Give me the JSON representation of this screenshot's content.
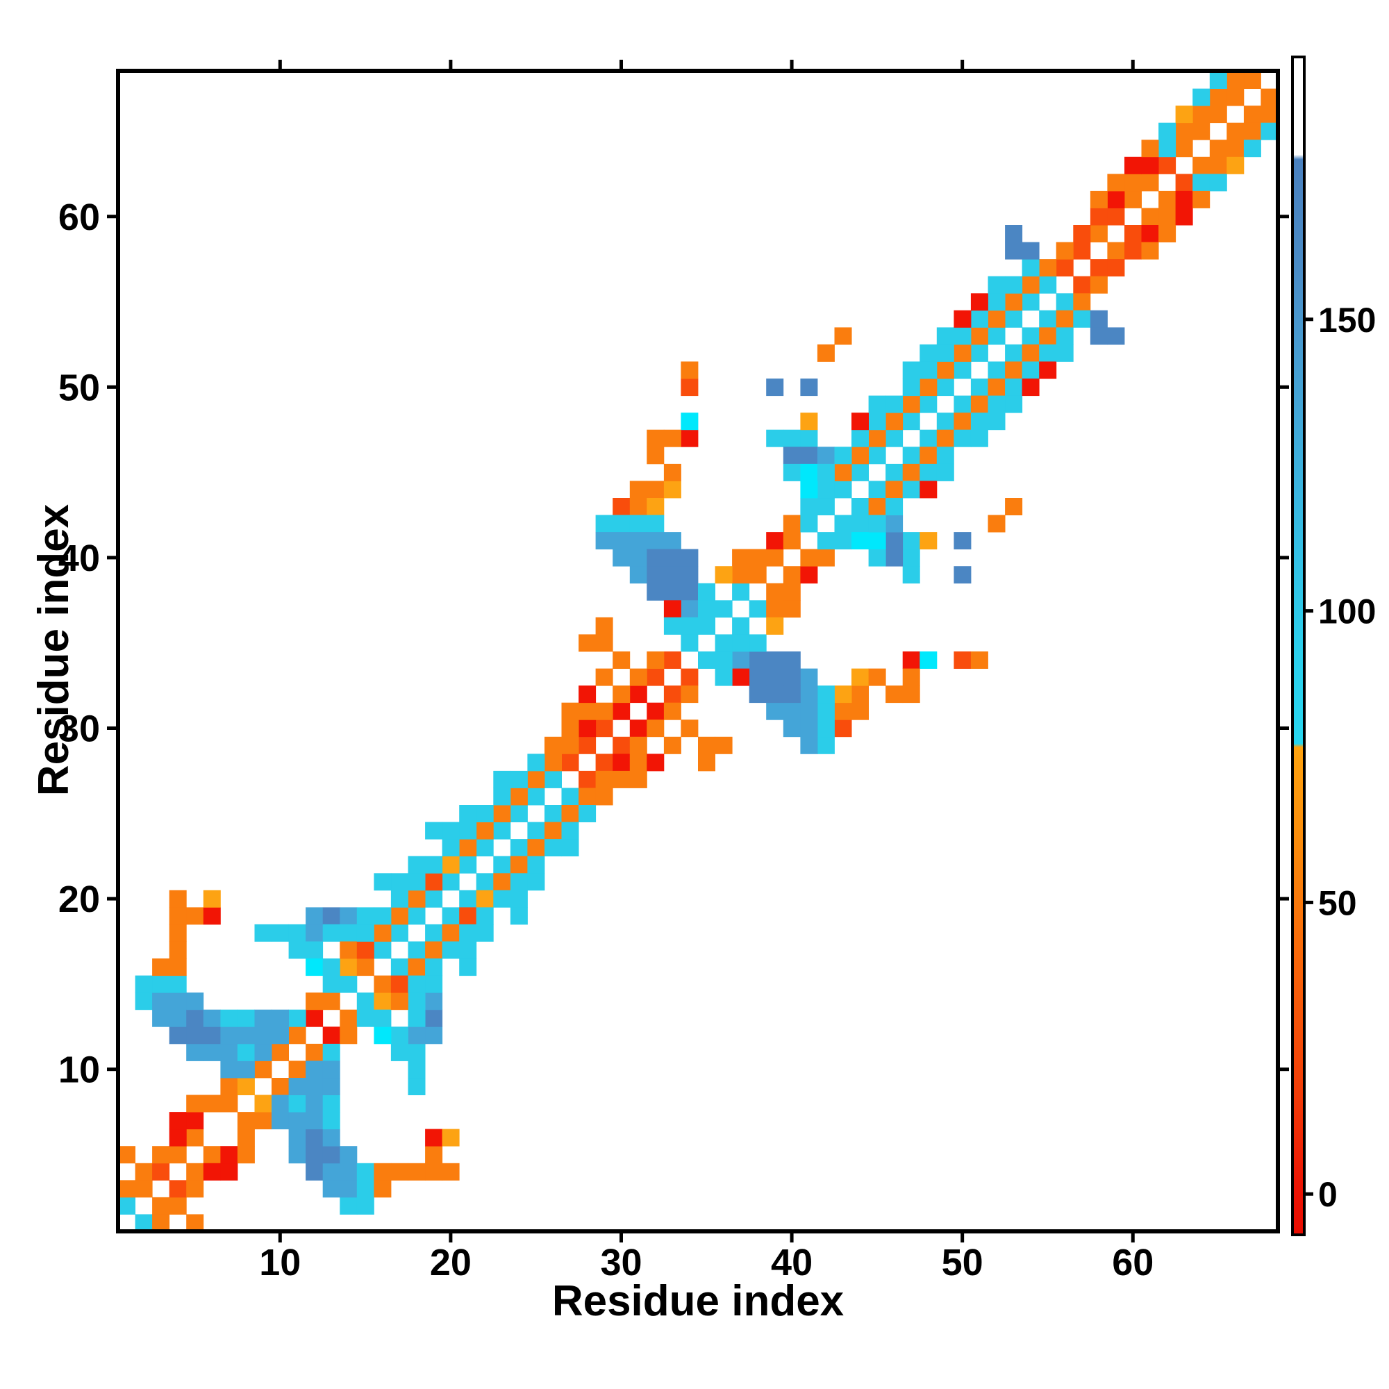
{
  "figure": {
    "x_axis_title": "Residue index",
    "y_axis_title": "Residue index"
  },
  "chart_data": {
    "type": "heatmap",
    "title": "",
    "xlabel": "Residue index",
    "ylabel": "Residue index",
    "n_residues": 68,
    "x_ticks": [
      10,
      20,
      30,
      40,
      50,
      60
    ],
    "y_ticks": [
      10,
      20,
      30,
      40,
      50,
      60
    ],
    "grid": false,
    "symmetric_matrix": true,
    "background_value_color": "#ffffff",
    "palette": {
      "R": "#f21505",
      "V": "#f94d0c",
      "O": "#fa7d0e",
      "A": "#fda313",
      "C": "#2bcde9",
      "X": "#00e8fc",
      "B": "#44a5d8",
      "S": "#4b86c3"
    },
    "class_value_ranges": {
      "R": "0-15",
      "V": "20-40",
      "O": "45-65",
      "A": "65-75",
      "C": "80-120",
      "X": "85 (bright)",
      "B": "125-145",
      "S": "150-175",
      "white": ">178 / no contact"
    },
    "colorbar": {
      "ticks": [
        0,
        50,
        100,
        150
      ],
      "value_range": [
        -7,
        195
      ],
      "segments_top_to_bottom": [
        [
          "0.000",
          "#ffffff"
        ],
        [
          "0.083",
          "#ffffff"
        ],
        [
          "0.087",
          "#4a81bf"
        ],
        [
          "0.180",
          "#4a8cc6"
        ],
        [
          "0.224",
          "#4997cd"
        ],
        [
          "0.300",
          "#43a6d7"
        ],
        [
          "0.400",
          "#36bce3"
        ],
        [
          "0.500",
          "#2ccfec"
        ],
        [
          "0.583",
          "#27d6ef"
        ],
        [
          "0.586",
          "#ffa30f"
        ],
        [
          "0.660",
          "#fb8e0c"
        ],
        [
          "0.760",
          "#f9690a"
        ],
        [
          "0.880",
          "#f23c08"
        ],
        [
          "0.960",
          "#ec1404"
        ],
        [
          "1.000",
          "#e80c00"
        ]
      ]
    },
    "cells": [
      [
        1,
        2,
        "C"
      ],
      [
        1,
        3,
        "O"
      ],
      [
        2,
        3,
        "O"
      ],
      [
        2,
        4,
        "O"
      ],
      [
        3,
        4,
        "V"
      ],
      [
        3,
        5,
        "O"
      ],
      [
        1,
        5,
        "O"
      ],
      [
        4,
        5,
        "O"
      ],
      [
        5,
        6,
        "O"
      ],
      [
        4,
        6,
        "R"
      ],
      [
        4,
        7,
        "R"
      ],
      [
        5,
        7,
        "R"
      ],
      [
        5,
        8,
        "O"
      ],
      [
        6,
        8,
        "O"
      ],
      [
        7,
        8,
        "O"
      ],
      [
        7,
        9,
        "O"
      ],
      [
        8,
        9,
        "A"
      ],
      [
        9,
        10,
        "O"
      ],
      [
        8,
        10,
        "O"
      ],
      [
        10,
        11,
        "O"
      ],
      [
        11,
        12,
        "O"
      ],
      [
        10,
        12,
        "B"
      ],
      [
        12,
        13,
        "R"
      ],
      [
        11,
        13,
        "C"
      ],
      [
        13,
        14,
        "O"
      ],
      [
        12,
        14,
        "O"
      ],
      [
        13,
        15,
        "C"
      ],
      [
        14,
        15,
        "C"
      ],
      [
        14,
        16,
        "A"
      ],
      [
        15,
        16,
        "O"
      ],
      [
        2,
        14,
        "C"
      ],
      [
        2,
        15,
        "C"
      ],
      [
        3,
        13,
        "B"
      ],
      [
        3,
        14,
        "B"
      ],
      [
        3,
        15,
        "C"
      ],
      [
        4,
        12,
        "S"
      ],
      [
        4,
        13,
        "B"
      ],
      [
        4,
        14,
        "B"
      ],
      [
        4,
        15,
        "C"
      ],
      [
        5,
        11,
        "B"
      ],
      [
        5,
        12,
        "S"
      ],
      [
        5,
        13,
        "S"
      ],
      [
        5,
        14,
        "B"
      ],
      [
        6,
        11,
        "B"
      ],
      [
        6,
        12,
        "S"
      ],
      [
        6,
        13,
        "B"
      ],
      [
        7,
        10,
        "B"
      ],
      [
        7,
        11,
        "B"
      ],
      [
        7,
        12,
        "B"
      ],
      [
        7,
        13,
        "C"
      ],
      [
        8,
        10,
        "B"
      ],
      [
        8,
        11,
        "C"
      ],
      [
        8,
        12,
        "B"
      ],
      [
        8,
        13,
        "C"
      ],
      [
        9,
        11,
        "B"
      ],
      [
        9,
        12,
        "B"
      ],
      [
        9,
        13,
        "B"
      ],
      [
        10,
        13,
        "B"
      ],
      [
        3,
        16,
        "O"
      ],
      [
        4,
        16,
        "O"
      ],
      [
        4,
        17,
        "O"
      ],
      [
        4,
        18,
        "O"
      ],
      [
        4,
        19,
        "O"
      ],
      [
        5,
        19,
        "O"
      ],
      [
        6,
        19,
        "R"
      ],
      [
        4,
        20,
        "O"
      ],
      [
        6,
        20,
        "A"
      ],
      [
        9,
        18,
        "C"
      ],
      [
        10,
        18,
        "C"
      ],
      [
        11,
        18,
        "C"
      ],
      [
        12,
        18,
        "B"
      ],
      [
        11,
        17,
        "C"
      ],
      [
        12,
        17,
        "C"
      ],
      [
        12,
        16,
        "X"
      ],
      [
        12,
        19,
        "B"
      ],
      [
        13,
        19,
        "S"
      ],
      [
        14,
        19,
        "B"
      ],
      [
        13,
        18,
        "C"
      ],
      [
        14,
        18,
        "C"
      ],
      [
        13,
        16,
        "C"
      ],
      [
        14,
        17,
        "O"
      ],
      [
        16,
        17,
        "C"
      ],
      [
        17,
        18,
        "C"
      ],
      [
        18,
        19,
        "C"
      ],
      [
        19,
        20,
        "C"
      ],
      [
        20,
        21,
        "C"
      ],
      [
        21,
        22,
        "C"
      ],
      [
        22,
        23,
        "C"
      ],
      [
        23,
        24,
        "C"
      ],
      [
        24,
        25,
        "C"
      ],
      [
        25,
        26,
        "C"
      ],
      [
        26,
        27,
        "C"
      ],
      [
        27,
        28,
        "V"
      ],
      [
        28,
        29,
        "V"
      ],
      [
        29,
        30,
        "V"
      ],
      [
        30,
        31,
        "R"
      ],
      [
        31,
        32,
        "R"
      ],
      [
        32,
        33,
        "V"
      ],
      [
        33,
        34,
        "V"
      ],
      [
        15,
        17,
        "V"
      ],
      [
        16,
        18,
        "O"
      ],
      [
        17,
        19,
        "O"
      ],
      [
        18,
        20,
        "O"
      ],
      [
        19,
        21,
        "V"
      ],
      [
        20,
        22,
        "A"
      ],
      [
        21,
        23,
        "O"
      ],
      [
        22,
        24,
        "O"
      ],
      [
        23,
        25,
        "O"
      ],
      [
        24,
        26,
        "O"
      ],
      [
        25,
        27,
        "O"
      ],
      [
        26,
        28,
        "O"
      ],
      [
        27,
        29,
        "O"
      ],
      [
        28,
        30,
        "R"
      ],
      [
        29,
        31,
        "O"
      ],
      [
        30,
        32,
        "O"
      ],
      [
        31,
        33,
        "O"
      ],
      [
        32,
        34,
        "O"
      ],
      [
        15,
        18,
        "C"
      ],
      [
        16,
        19,
        "C"
      ],
      [
        17,
        20,
        "C"
      ],
      [
        18,
        21,
        "C"
      ],
      [
        19,
        22,
        "C"
      ],
      [
        20,
        23,
        "C"
      ],
      [
        21,
        24,
        "C"
      ],
      [
        22,
        25,
        "C"
      ],
      [
        23,
        26,
        "C"
      ],
      [
        24,
        27,
        "C"
      ],
      [
        25,
        28,
        "C"
      ],
      [
        26,
        29,
        "O"
      ],
      [
        27,
        30,
        "O"
      ],
      [
        28,
        31,
        "O"
      ],
      [
        28,
        32,
        "R"
      ],
      [
        29,
        33,
        "O"
      ],
      [
        30,
        34,
        "O"
      ],
      [
        27,
        31,
        "O"
      ],
      [
        15,
        19,
        "C"
      ],
      [
        17,
        21,
        "C"
      ],
      [
        18,
        22,
        "C"
      ],
      [
        20,
        24,
        "C"
      ],
      [
        21,
        25,
        "C"
      ],
      [
        23,
        27,
        "C"
      ],
      [
        16,
        21,
        "C"
      ],
      [
        19,
        24,
        "C"
      ],
      [
        31,
        44,
        "O"
      ],
      [
        32,
        44,
        "O"
      ],
      [
        33,
        44,
        "A"
      ],
      [
        33,
        45,
        "O"
      ],
      [
        30,
        43,
        "V"
      ],
      [
        31,
        43,
        "O"
      ],
      [
        32,
        43,
        "A"
      ],
      [
        29,
        42,
        "C"
      ],
      [
        30,
        42,
        "C"
      ],
      [
        31,
        42,
        "C"
      ],
      [
        32,
        42,
        "C"
      ],
      [
        29,
        41,
        "B"
      ],
      [
        30,
        41,
        "B"
      ],
      [
        31,
        41,
        "B"
      ],
      [
        32,
        41,
        "B"
      ],
      [
        33,
        41,
        "B"
      ],
      [
        30,
        40,
        "B"
      ],
      [
        31,
        40,
        "B"
      ],
      [
        32,
        40,
        "S"
      ],
      [
        33,
        40,
        "S"
      ],
      [
        34,
        40,
        "S"
      ],
      [
        31,
        39,
        "B"
      ],
      [
        32,
        39,
        "S"
      ],
      [
        33,
        39,
        "S"
      ],
      [
        34,
        39,
        "S"
      ],
      [
        32,
        38,
        "S"
      ],
      [
        33,
        38,
        "S"
      ],
      [
        34,
        38,
        "S"
      ],
      [
        35,
        38,
        "C"
      ],
      [
        34,
        37,
        "B"
      ],
      [
        35,
        37,
        "C"
      ],
      [
        33,
        37,
        "R"
      ],
      [
        33,
        36,
        "C"
      ],
      [
        34,
        36,
        "C"
      ],
      [
        35,
        36,
        "C"
      ],
      [
        34,
        35,
        "C"
      ],
      [
        29,
        36,
        "O"
      ],
      [
        29,
        35,
        "O"
      ],
      [
        28,
        35,
        "O"
      ],
      [
        36,
        37,
        "C"
      ],
      [
        37,
        38,
        "C"
      ],
      [
        38,
        39,
        "O"
      ],
      [
        39,
        40,
        "O"
      ],
      [
        37,
        39,
        "O"
      ],
      [
        37,
        40,
        "O"
      ],
      [
        38,
        40,
        "O"
      ],
      [
        39,
        41,
        "R"
      ],
      [
        40,
        41,
        "O"
      ],
      [
        36,
        39,
        "A"
      ],
      [
        40,
        42,
        "O"
      ],
      [
        41,
        42,
        "C"
      ],
      [
        41,
        43,
        "C"
      ],
      [
        42,
        43,
        "C"
      ],
      [
        34,
        47,
        "R"
      ],
      [
        34,
        48,
        "X"
      ],
      [
        32,
        47,
        "O"
      ],
      [
        33,
        47,
        "O"
      ],
      [
        32,
        46,
        "O"
      ],
      [
        39,
        47,
        "C"
      ],
      [
        40,
        47,
        "C"
      ],
      [
        41,
        47,
        "C"
      ],
      [
        40,
        46,
        "S"
      ],
      [
        41,
        46,
        "S"
      ],
      [
        42,
        46,
        "B"
      ],
      [
        41,
        48,
        "A"
      ],
      [
        39,
        50,
        "S"
      ],
      [
        41,
        50,
        "S"
      ],
      [
        34,
        50,
        "V"
      ],
      [
        34,
        51,
        "O"
      ],
      [
        43,
        53,
        "O"
      ],
      [
        42,
        52,
        "O"
      ],
      [
        43,
        44,
        "C"
      ],
      [
        44,
        45,
        "C"
      ],
      [
        45,
        46,
        "C"
      ],
      [
        46,
        47,
        "C"
      ],
      [
        47,
        48,
        "C"
      ],
      [
        48,
        49,
        "C"
      ],
      [
        49,
        50,
        "C"
      ],
      [
        50,
        51,
        "C"
      ],
      [
        51,
        52,
        "C"
      ],
      [
        52,
        53,
        "C"
      ],
      [
        53,
        54,
        "C"
      ],
      [
        54,
        55,
        "C"
      ],
      [
        55,
        56,
        "C"
      ],
      [
        56,
        57,
        "V"
      ],
      [
        57,
        58,
        "V"
      ],
      [
        43,
        45,
        "O"
      ],
      [
        44,
        46,
        "O"
      ],
      [
        45,
        47,
        "O"
      ],
      [
        46,
        48,
        "O"
      ],
      [
        47,
        49,
        "O"
      ],
      [
        48,
        50,
        "O"
      ],
      [
        49,
        51,
        "O"
      ],
      [
        50,
        52,
        "O"
      ],
      [
        51,
        53,
        "O"
      ],
      [
        52,
        54,
        "O"
      ],
      [
        53,
        55,
        "O"
      ],
      [
        54,
        56,
        "O"
      ],
      [
        55,
        57,
        "O"
      ],
      [
        56,
        58,
        "O"
      ],
      [
        42,
        44,
        "C"
      ],
      [
        43,
        46,
        "C"
      ],
      [
        44,
        47,
        "C"
      ],
      [
        45,
        48,
        "C"
      ],
      [
        46,
        49,
        "C"
      ],
      [
        47,
        50,
        "C"
      ],
      [
        48,
        51,
        "C"
      ],
      [
        49,
        52,
        "C"
      ],
      [
        50,
        53,
        "C"
      ],
      [
        51,
        54,
        "C"
      ],
      [
        52,
        55,
        "C"
      ],
      [
        53,
        56,
        "C"
      ],
      [
        54,
        57,
        "C"
      ],
      [
        44,
        48,
        "R"
      ],
      [
        45,
        49,
        "C"
      ],
      [
        47,
        51,
        "C"
      ],
      [
        48,
        52,
        "C"
      ],
      [
        49,
        53,
        "C"
      ],
      [
        50,
        54,
        "R"
      ],
      [
        51,
        55,
        "R"
      ],
      [
        52,
        56,
        "C"
      ],
      [
        40,
        45,
        "C"
      ],
      [
        41,
        44,
        "X"
      ],
      [
        41,
        45,
        "X"
      ],
      [
        42,
        45,
        "C"
      ],
      [
        53,
        58,
        "S"
      ],
      [
        53,
        59,
        "S"
      ],
      [
        54,
        58,
        "S"
      ],
      [
        58,
        59,
        "O"
      ],
      [
        59,
        60,
        "V"
      ],
      [
        60,
        61,
        "O"
      ],
      [
        61,
        62,
        "O"
      ],
      [
        62,
        63,
        "V"
      ],
      [
        63,
        64,
        "O"
      ],
      [
        64,
        65,
        "O"
      ],
      [
        65,
        66,
        "O"
      ],
      [
        66,
        67,
        "O"
      ],
      [
        67,
        68,
        "O"
      ],
      [
        57,
        59,
        "V"
      ],
      [
        58,
        60,
        "V"
      ],
      [
        59,
        61,
        "R"
      ],
      [
        60,
        62,
        "O"
      ],
      [
        61,
        63,
        "R"
      ],
      [
        62,
        64,
        "C"
      ],
      [
        63,
        65,
        "O"
      ],
      [
        64,
        66,
        "O"
      ],
      [
        65,
        67,
        "O"
      ],
      [
        66,
        68,
        "O"
      ],
      [
        58,
        61,
        "O"
      ],
      [
        60,
        63,
        "R"
      ],
      [
        61,
        64,
        "O"
      ],
      [
        62,
        65,
        "C"
      ],
      [
        63,
        66,
        "A"
      ],
      [
        64,
        67,
        "C"
      ],
      [
        65,
        68,
        "C"
      ],
      [
        59,
        62,
        "O"
      ]
    ]
  }
}
